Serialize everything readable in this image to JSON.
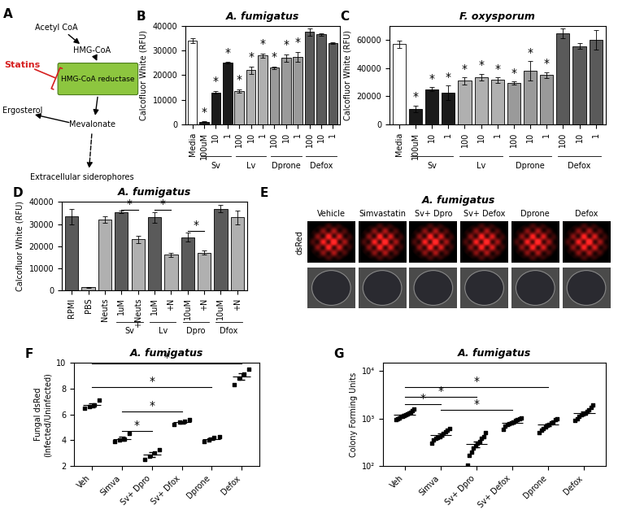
{
  "chart_data": [
    {
      "panel_label": "B",
      "type": "bar",
      "title": "A. fumigatus",
      "ylabel": "Calcofluor White (RFU)",
      "categories": [
        "Media",
        "100uM",
        "10",
        "1",
        "100",
        "10",
        "1",
        "100",
        "10",
        "1",
        "100",
        "10",
        "1"
      ],
      "values": [
        34000,
        1000,
        13000,
        25000,
        13500,
        22000,
        28000,
        23000,
        27000,
        27500,
        37500,
        36500,
        33000
      ],
      "errors": [
        1000,
        200,
        500,
        300,
        800,
        1500,
        800,
        500,
        1500,
        2000,
        1500,
        500,
        300
      ],
      "colors": [
        "#ffffff",
        "#1a1a1a",
        "#1a1a1a",
        "#1a1a1a",
        "#b0b0b0",
        "#b0b0b0",
        "#b0b0b0",
        "#9a9a9a",
        "#9a9a9a",
        "#9a9a9a",
        "#5a5a5a",
        "#5a5a5a",
        "#5a5a5a"
      ],
      "groups": [
        {
          "label": "Sv",
          "start": 1,
          "end": 3
        },
        {
          "label": "Lv",
          "start": 4,
          "end": 6
        },
        {
          "label": "Dprone",
          "start": 7,
          "end": 9
        },
        {
          "label": "Defox",
          "start": 10,
          "end": 12
        }
      ],
      "annotations": [
        {
          "text": "*",
          "x": [
            1
          ],
          "y": 2500
        },
        {
          "text": "*",
          "x": [
            2
          ],
          "y": 15000
        },
        {
          "text": "*",
          "x": [
            3
          ],
          "y": 26800
        },
        {
          "text": "*",
          "x": [
            4
          ],
          "y": 15800
        },
        {
          "text": "*",
          "x": [
            5
          ],
          "y": 25000
        },
        {
          "text": "*",
          "x": [
            6
          ],
          "y": 30300
        },
        {
          "text": "*",
          "x": [
            7
          ],
          "y": 25000
        },
        {
          "text": "*",
          "x": [
            8
          ],
          "y": 30000
        },
        {
          "text": "*",
          "x": [
            9
          ],
          "y": 31000
        }
      ],
      "ylim": [
        0,
        40000
      ],
      "yticks": [
        0,
        10000,
        20000,
        30000,
        40000
      ]
    },
    {
      "panel_label": "C",
      "type": "bar",
      "title": "F. oxysporum",
      "ylabel": "Calcofluor White (RFU)",
      "categories": [
        "Media",
        "100uM",
        "10",
        "1",
        "100",
        "10",
        "1",
        "100",
        "10",
        "1",
        "100",
        "10",
        "1"
      ],
      "values": [
        57000,
        11000,
        25000,
        22500,
        31000,
        33500,
        31500,
        29500,
        38000,
        35000,
        64500,
        55500,
        60000
      ],
      "errors": [
        2500,
        2500,
        1500,
        5000,
        2500,
        2500,
        2000,
        1000,
        7000,
        2000,
        3500,
        2000,
        7000
      ],
      "colors": [
        "#ffffff",
        "#1a1a1a",
        "#1a1a1a",
        "#1a1a1a",
        "#b0b0b0",
        "#b0b0b0",
        "#b0b0b0",
        "#9a9a9a",
        "#9a9a9a",
        "#9a9a9a",
        "#5a5a5a",
        "#5a5a5a",
        "#5a5a5a"
      ],
      "groups": [
        {
          "label": "Sv",
          "start": 1,
          "end": 3
        },
        {
          "label": "Lv",
          "start": 4,
          "end": 6
        },
        {
          "label": "Dprone",
          "start": 7,
          "end": 9
        },
        {
          "label": "Defox",
          "start": 10,
          "end": 12
        }
      ],
      "annotations": [
        {
          "text": "*",
          "x": [
            1
          ],
          "y": 15500
        },
        {
          "text": "*",
          "x": [
            2
          ],
          "y": 28500
        },
        {
          "text": "*",
          "x": [
            3
          ],
          "y": 29500
        },
        {
          "text": "*",
          "x": [
            4
          ],
          "y": 35500
        },
        {
          "text": "*",
          "x": [
            5
          ],
          "y": 38000
        },
        {
          "text": "*",
          "x": [
            6
          ],
          "y": 35500
        },
        {
          "text": "*",
          "x": [
            7
          ],
          "y": 32500
        },
        {
          "text": "*",
          "x": [
            8
          ],
          "y": 47000
        },
        {
          "text": "*",
          "x": [
            9
          ],
          "y": 39000
        }
      ],
      "ylim": [
        0,
        70000
      ],
      "yticks": [
        0,
        20000,
        40000,
        60000
      ]
    },
    {
      "panel_label": "D",
      "type": "bar",
      "title": "A. fumigatus",
      "ylabel": "Calcofluor White (RFU)",
      "categories": [
        "RPMI",
        "PBS",
        "Neuts",
        "1uM",
        "+Neuts",
        "1uM",
        "+N",
        "10uM",
        "+N",
        "10uM",
        "+N"
      ],
      "values": [
        33500,
        1200,
        32000,
        35500,
        23000,
        33000,
        16000,
        24000,
        17000,
        37000,
        33000
      ],
      "errors": [
        3500,
        300,
        1500,
        500,
        1500,
        2500,
        1000,
        2000,
        1000,
        1500,
        3000
      ],
      "colors": [
        "#5a5a5a",
        "#b0b0b0",
        "#b0b0b0",
        "#5a5a5a",
        "#b0b0b0",
        "#5a5a5a",
        "#b0b0b0",
        "#5a5a5a",
        "#b0b0b0",
        "#5a5a5a",
        "#b0b0b0"
      ],
      "groups": [
        {
          "label": "Sv",
          "start": 3,
          "end": 4
        },
        {
          "label": "Lv",
          "start": 5,
          "end": 6
        },
        {
          "label": "Dpro",
          "start": 7,
          "end": 8
        },
        {
          "label": "Dfox",
          "start": 9,
          "end": 10
        }
      ],
      "annotations": [
        {
          "text": "*",
          "x": [
            3,
            4
          ],
          "y": 36500
        },
        {
          "text": "*",
          "x": [
            5,
            6
          ],
          "y": 36500
        },
        {
          "text": "*",
          "x": [
            7,
            8
          ],
          "y": 27000
        }
      ],
      "ylim": [
        0,
        40000
      ],
      "yticks": [
        0,
        10000,
        20000,
        30000,
        40000
      ]
    },
    {
      "panel_label": "F",
      "type": "scatter",
      "title": "A. fumigatus",
      "ylabel": "Fungal dsRed\n(Infected/Uninfected)",
      "categories": [
        "Veh",
        "Simva",
        "Sv+ Dpro",
        "Sv+ Dfox",
        "Dprone",
        "Defox"
      ],
      "points": [
        [
          6.5,
          6.6,
          6.7,
          7.1
        ],
        [
          3.9,
          4.0,
          4.1,
          4.5
        ],
        [
          2.5,
          2.8,
          3.0,
          3.3
        ],
        [
          5.2,
          5.4,
          5.5,
          5.6
        ],
        [
          3.9,
          4.0,
          4.2,
          4.3
        ],
        [
          8.3,
          8.8,
          9.1,
          9.5
        ]
      ],
      "means": [
        6.7,
        4.1,
        2.9,
        5.4,
        4.1,
        8.9
      ],
      "errors": [
        0.15,
        0.15,
        0.2,
        0.1,
        0.1,
        0.25
      ],
      "color": "#000000",
      "marker": "square",
      "annotations": [
        {
          "text": "*",
          "x": [
            0,
            5
          ],
          "y": 9.9
        },
        {
          "text": "*",
          "x": [
            0,
            4
          ],
          "y": 8.1
        },
        {
          "text": "*",
          "x": [
            1,
            3
          ],
          "y": 6.2
        },
        {
          "text": "*",
          "x": [
            1,
            2
          ],
          "y": 4.7
        }
      ],
      "ylim": [
        2,
        10
      ],
      "yticks": [
        2,
        4,
        6,
        8,
        10
      ]
    },
    {
      "panel_label": "G",
      "type": "scatter",
      "title": "A. fumigatus",
      "ylabel": "Colony Forming Units",
      "categories": [
        "Veh",
        "Simva",
        "Sv+ Dpro",
        "Sv+ Defox",
        "Dprone",
        "Defox"
      ],
      "points": [
        [
          950,
          1000,
          1050,
          1100,
          1100,
          1150,
          1200,
          1250,
          1300,
          1350,
          1450,
          1600
        ],
        [
          300,
          350,
          380,
          400,
          420,
          450,
          480,
          520,
          580,
          620
        ],
        [
          105,
          170,
          200,
          240,
          270,
          300,
          330,
          380,
          420,
          500
        ],
        [
          600,
          700,
          750,
          780,
          800,
          850,
          900,
          950,
          1000,
          1050
        ],
        [
          500,
          580,
          620,
          680,
          720,
          760,
          800,
          850,
          950,
          1000
        ],
        [
          900,
          1000,
          1100,
          1200,
          1250,
          1300,
          1400,
          1500,
          1700,
          1900
        ]
      ],
      "means": [
        1200,
        450,
        290,
        820,
        740,
        1300
      ],
      "errors": [
        50,
        35,
        40,
        40,
        45,
        100
      ],
      "color": "#000000",
      "marker": "square",
      "log": "y",
      "annotations": [
        {
          "text": "*",
          "x": [
            0,
            1
          ],
          "y": 2000
        },
        {
          "text": "*",
          "x": [
            0,
            2
          ],
          "y": 2900
        },
        {
          "text": "*",
          "x": [
            0,
            4
          ],
          "y": 4600
        },
        {
          "text": "*",
          "x": [
            1,
            3
          ],
          "y": 1550
        }
      ],
      "ylim": [
        100,
        15000
      ],
      "yticks": [
        {
          "value": 100,
          "label": "10²"
        },
        {
          "value": 1000,
          "label": "10³"
        },
        {
          "value": 10000,
          "label": "10⁴"
        }
      ]
    }
  ],
  "diagram": {
    "panel_label": "A",
    "nodes": [
      "Acetyl CoA",
      "HMG-CoA",
      "HMG-CoA reductase",
      "Ergosterol",
      "Mevalonate",
      "Extracellular siderophores"
    ],
    "inhibitor": "Statins"
  },
  "image_panel": {
    "panel_label": "E",
    "title": "A. fumigatus",
    "row_label": "dsRed",
    "columns": [
      "Vehicle",
      "Simvastatin",
      "Sv+ Dpro",
      "Sv+ Defox",
      "Dprone",
      "Defox"
    ]
  }
}
